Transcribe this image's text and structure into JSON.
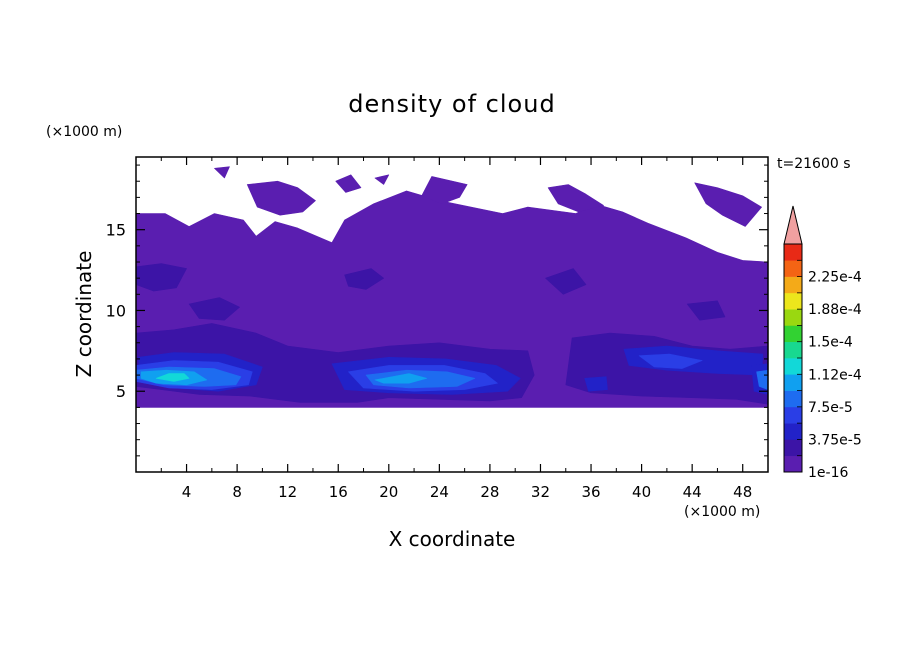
{
  "chart_data": {
    "type": "heatmap",
    "title": "density of cloud",
    "xlabel": "X coordinate",
    "ylabel": "Z coordinate",
    "x_unit": "(×1000 m)",
    "y_unit": "(×1000 m)",
    "time_label": "t=21600 s",
    "x_ticks": [
      4,
      8,
      12,
      16,
      20,
      24,
      28,
      32,
      36,
      40,
      44,
      48
    ],
    "y_ticks": [
      5,
      10,
      15
    ],
    "xlim": [
      0,
      50
    ],
    "ylim": [
      0,
      19.5
    ],
    "colorbar": {
      "labels": [
        "1e-16",
        "3.75e-5",
        "7.5e-5",
        "1.12e-4",
        "1.5e-4",
        "1.88e-4",
        "2.25e-4"
      ],
      "levels": [
        1e-16,
        1.875e-05,
        3.75e-05,
        5.625e-05,
        7.5e-05,
        9.375e-05,
        0.0001125,
        0.00013125,
        0.00015,
        0.00016875,
        0.0001875,
        0.00020625,
        0.000225,
        0.00024375
      ],
      "colors": [
        "#5a1eb0",
        "#3c14a6",
        "#2222c8",
        "#2a3ee6",
        "#1e6cf0",
        "#10a0f0",
        "#12d8d8",
        "#18d890",
        "#32d232",
        "#9ad810",
        "#ece61c",
        "#f4aa18",
        "#f46414",
        "#e82a16"
      ],
      "extend_color": "#f0a0a0"
    },
    "regions": [
      {
        "level": 0,
        "polygon": [
          [
            0,
            16
          ],
          [
            2.3,
            16
          ],
          [
            4.2,
            15.2
          ],
          [
            6.2,
            16
          ],
          [
            8.5,
            15.6
          ],
          [
            9.5,
            14.6
          ],
          [
            11,
            15.5
          ],
          [
            12.8,
            15.1
          ],
          [
            15.5,
            14.2
          ],
          [
            16.5,
            15.6
          ],
          [
            18.8,
            16.6
          ],
          [
            21.4,
            17.4
          ],
          [
            24,
            16.8
          ],
          [
            26.5,
            16.4
          ],
          [
            29,
            16
          ],
          [
            31,
            16.4
          ],
          [
            34.8,
            16
          ],
          [
            36.3,
            16.6
          ],
          [
            38.5,
            16.1
          ],
          [
            40.5,
            15.4
          ],
          [
            43.5,
            14.5
          ],
          [
            46,
            13.6
          ],
          [
            48,
            13.1
          ],
          [
            50,
            13
          ],
          [
            50,
            4
          ],
          [
            0,
            4
          ]
        ]
      },
      {
        "level": 0,
        "polygon": [
          [
            8.8,
            17.8
          ],
          [
            11.2,
            18
          ],
          [
            12.8,
            17.6
          ],
          [
            14.2,
            16.8
          ],
          [
            13.2,
            16.1
          ],
          [
            11.4,
            15.9
          ],
          [
            9.6,
            16.4
          ]
        ]
      },
      {
        "level": 0,
        "polygon": [
          [
            23.4,
            18.3
          ],
          [
            26.2,
            17.8
          ],
          [
            25.6,
            17
          ],
          [
            24.2,
            16.6
          ],
          [
            22.6,
            17.1
          ]
        ]
      },
      {
        "level": 0,
        "polygon": [
          [
            32.6,
            17.6
          ],
          [
            34.2,
            17.8
          ],
          [
            35.6,
            17.2
          ],
          [
            37,
            16.5
          ],
          [
            35,
            16.1
          ],
          [
            33.4,
            16.6
          ]
        ]
      },
      {
        "level": 0,
        "polygon": [
          [
            44.2,
            17.9
          ],
          [
            46,
            17.6
          ],
          [
            48,
            17.1
          ],
          [
            49.5,
            16.4
          ],
          [
            48.2,
            15.2
          ],
          [
            46.4,
            15.9
          ],
          [
            45.1,
            16.6
          ]
        ]
      },
      {
        "level": 0,
        "polygon": [
          [
            15.8,
            18
          ],
          [
            17,
            18.4
          ],
          [
            17.8,
            17.6
          ],
          [
            16.6,
            17.3
          ]
        ]
      },
      {
        "level": 0,
        "polygon": [
          [
            6.2,
            18.8
          ],
          [
            7.4,
            18.9
          ],
          [
            7,
            18.2
          ]
        ]
      },
      {
        "level": 0,
        "polygon": [
          [
            18.9,
            18.2
          ],
          [
            20,
            18.4
          ],
          [
            19.6,
            17.8
          ]
        ]
      },
      {
        "level": 1,
        "polygon": [
          [
            0,
            12.7
          ],
          [
            2,
            12.9
          ],
          [
            4,
            12.6
          ],
          [
            3.2,
            11.4
          ],
          [
            1.4,
            11.2
          ],
          [
            0,
            11.6
          ]
        ]
      },
      {
        "level": 1,
        "polygon": [
          [
            4.2,
            10.4
          ],
          [
            6.6,
            10.8
          ],
          [
            8.2,
            10.2
          ],
          [
            7,
            9.4
          ],
          [
            5,
            9.5
          ]
        ]
      },
      {
        "level": 1,
        "polygon": [
          [
            16.5,
            12.2
          ],
          [
            18.6,
            12.6
          ],
          [
            19.6,
            12
          ],
          [
            18.2,
            11.3
          ],
          [
            16.8,
            11.5
          ]
        ]
      },
      {
        "level": 1,
        "polygon": [
          [
            32.4,
            12
          ],
          [
            34.6,
            12.6
          ],
          [
            35.6,
            11.6
          ],
          [
            33.8,
            11
          ]
        ]
      },
      {
        "level": 1,
        "polygon": [
          [
            43.6,
            10.4
          ],
          [
            46,
            10.6
          ],
          [
            46.6,
            9.6
          ],
          [
            44.6,
            9.4
          ]
        ]
      },
      {
        "level": 1,
        "polygon": [
          [
            0,
            8.6
          ],
          [
            3,
            8.8
          ],
          [
            6,
            9.2
          ],
          [
            9.5,
            8.6
          ],
          [
            12,
            7.8
          ],
          [
            16,
            7.4
          ],
          [
            20,
            7.8
          ],
          [
            24,
            8
          ],
          [
            28,
            7.6
          ],
          [
            31,
            7.5
          ],
          [
            31.5,
            6
          ],
          [
            30.5,
            4.6
          ],
          [
            28,
            4.4
          ],
          [
            24,
            4.5
          ],
          [
            20,
            4.6
          ],
          [
            17.5,
            4.3
          ],
          [
            13,
            4.3
          ],
          [
            9,
            4.7
          ],
          [
            5,
            4.8
          ],
          [
            2,
            5.1
          ],
          [
            0,
            5.3
          ]
        ]
      },
      {
        "level": 1,
        "polygon": [
          [
            34.5,
            8.3
          ],
          [
            37.5,
            8.6
          ],
          [
            41,
            8.4
          ],
          [
            44,
            7.8
          ],
          [
            47,
            7.6
          ],
          [
            50,
            7.8
          ],
          [
            50,
            4.2
          ],
          [
            47.5,
            4.5
          ],
          [
            44,
            4.6
          ],
          [
            40,
            4.7
          ],
          [
            36,
            4.9
          ],
          [
            34,
            5.4
          ]
        ]
      },
      {
        "level": 2,
        "polygon": [
          [
            0.2,
            7.1
          ],
          [
            3,
            7.4
          ],
          [
            7,
            7.3
          ],
          [
            10,
            6.5
          ],
          [
            9.5,
            5.4
          ],
          [
            6.5,
            5
          ],
          [
            3,
            5.2
          ],
          [
            0.3,
            5.6
          ]
        ]
      },
      {
        "level": 2,
        "polygon": [
          [
            15.5,
            6.7
          ],
          [
            20,
            7.1
          ],
          [
            24.5,
            7
          ],
          [
            28.5,
            6.6
          ],
          [
            30.4,
            5.8
          ],
          [
            29.4,
            5
          ],
          [
            25,
            4.8
          ],
          [
            20,
            4.9
          ],
          [
            16.5,
            5.1
          ]
        ]
      },
      {
        "level": 2,
        "polygon": [
          [
            38.6,
            7.6
          ],
          [
            42,
            7.8
          ],
          [
            46,
            7.5
          ],
          [
            49.6,
            7.3
          ],
          [
            49.5,
            6
          ],
          [
            46,
            6.1
          ],
          [
            42,
            6.3
          ],
          [
            39,
            6.6
          ]
        ]
      },
      {
        "level": 2,
        "polygon": [
          [
            35.5,
            5.8
          ],
          [
            37.2,
            5.9
          ],
          [
            37.3,
            5.1
          ],
          [
            35.8,
            5
          ]
        ]
      },
      {
        "level": 2,
        "polygon": [
          [
            48.7,
            6.6
          ],
          [
            50,
            6.7
          ],
          [
            50,
            4.8
          ],
          [
            48.9,
            5
          ]
        ]
      },
      {
        "level": 3,
        "polygon": [
          [
            0,
            6.6
          ],
          [
            3,
            6.9
          ],
          [
            6.5,
            6.8
          ],
          [
            9.2,
            6.2
          ],
          [
            8.9,
            5.4
          ],
          [
            6,
            5.1
          ],
          [
            2.6,
            5.2
          ],
          [
            0,
            5.6
          ]
        ]
      },
      {
        "level": 3,
        "polygon": [
          [
            16.8,
            6.2
          ],
          [
            20,
            6.6
          ],
          [
            24.4,
            6.6
          ],
          [
            27.6,
            6.1
          ],
          [
            28.6,
            5.5
          ],
          [
            26,
            5.1
          ],
          [
            22,
            5
          ],
          [
            18,
            5.2
          ]
        ]
      },
      {
        "level": 3,
        "polygon": [
          [
            39.8,
            7.2
          ],
          [
            42.2,
            7.3
          ],
          [
            44.8,
            6.9
          ],
          [
            43.2,
            6.4
          ],
          [
            41,
            6.5
          ]
        ]
      },
      {
        "level": 4,
        "polygon": [
          [
            0,
            6.3
          ],
          [
            2.6,
            6.5
          ],
          [
            6.2,
            6.4
          ],
          [
            8.3,
            5.9
          ],
          [
            7.9,
            5.4
          ],
          [
            5.4,
            5.3
          ],
          [
            2.2,
            5.4
          ],
          [
            0,
            5.8
          ]
        ]
      },
      {
        "level": 4,
        "polygon": [
          [
            18.2,
            6
          ],
          [
            21.4,
            6.3
          ],
          [
            24.6,
            6.2
          ],
          [
            26.8,
            5.8
          ],
          [
            25.4,
            5.3
          ],
          [
            21.6,
            5.2
          ],
          [
            18.8,
            5.4
          ]
        ]
      },
      {
        "level": 4,
        "polygon": [
          [
            49.1,
            6.2
          ],
          [
            50,
            6.3
          ],
          [
            50,
            5.1
          ],
          [
            49.3,
            5.3
          ]
        ]
      },
      {
        "level": 5,
        "polygon": [
          [
            0.4,
            6.2
          ],
          [
            2.4,
            6.3
          ],
          [
            4.6,
            6.2
          ],
          [
            5.6,
            5.7
          ],
          [
            4,
            5.4
          ],
          [
            1.6,
            5.5
          ],
          [
            0.4,
            5.8
          ]
        ]
      },
      {
        "level": 5,
        "polygon": [
          [
            18.9,
            5.7
          ],
          [
            21.6,
            6.1
          ],
          [
            23,
            5.8
          ],
          [
            21.6,
            5.5
          ],
          [
            19.6,
            5.5
          ]
        ]
      },
      {
        "level": 6,
        "polygon": [
          [
            1.6,
            5.8
          ],
          [
            2.6,
            6.1
          ],
          [
            3.8,
            6.1
          ],
          [
            4.2,
            5.8
          ],
          [
            3,
            5.6
          ]
        ]
      }
    ]
  }
}
